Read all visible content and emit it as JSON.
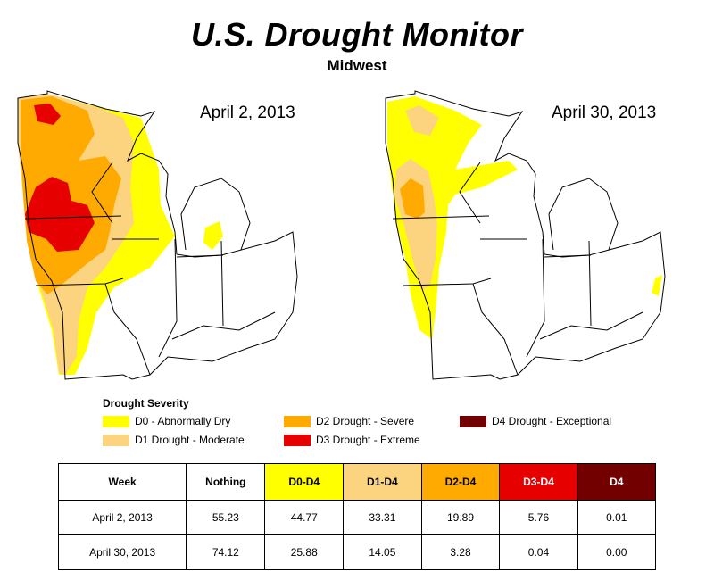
{
  "header": {
    "title": "U.S. Drought Monitor",
    "subtitle": "Midwest"
  },
  "maps": [
    {
      "date": "April 2, 2013"
    },
    {
      "date": "April 30, 2013"
    }
  ],
  "legend": {
    "title": "Drought Severity",
    "items": [
      {
        "label": "D0 - Abnormally Dry",
        "color": "#ffff00"
      },
      {
        "label": "D1 Drought - Moderate",
        "color": "#fcd37f"
      },
      {
        "label": "D2 Drought - Severe",
        "color": "#ffaa00"
      },
      {
        "label": "D3 Drought - Extreme",
        "color": "#e60000"
      },
      {
        "label": "D4 Drought - Exceptional",
        "color": "#730000"
      }
    ]
  },
  "table": {
    "headers": [
      {
        "label": "Week",
        "bg": "#ffffff",
        "fg": "#000000"
      },
      {
        "label": "Nothing",
        "bg": "#ffffff",
        "fg": "#000000"
      },
      {
        "label": "D0-D4",
        "bg": "#ffff00",
        "fg": "#000000"
      },
      {
        "label": "D1-D4",
        "bg": "#fcd37f",
        "fg": "#000000"
      },
      {
        "label": "D2-D4",
        "bg": "#ffaa00",
        "fg": "#000000"
      },
      {
        "label": "D3-D4",
        "bg": "#e60000",
        "fg": "#ffffff"
      },
      {
        "label": "D4",
        "bg": "#730000",
        "fg": "#ffffff"
      }
    ],
    "rows": [
      [
        "April 2, 2013",
        "55.23",
        "44.77",
        "33.31",
        "19.89",
        "5.76",
        "0.01"
      ],
      [
        "April 30, 2013",
        "74.12",
        "25.88",
        "14.05",
        "3.28",
        "0.04",
        "0.00"
      ]
    ]
  }
}
